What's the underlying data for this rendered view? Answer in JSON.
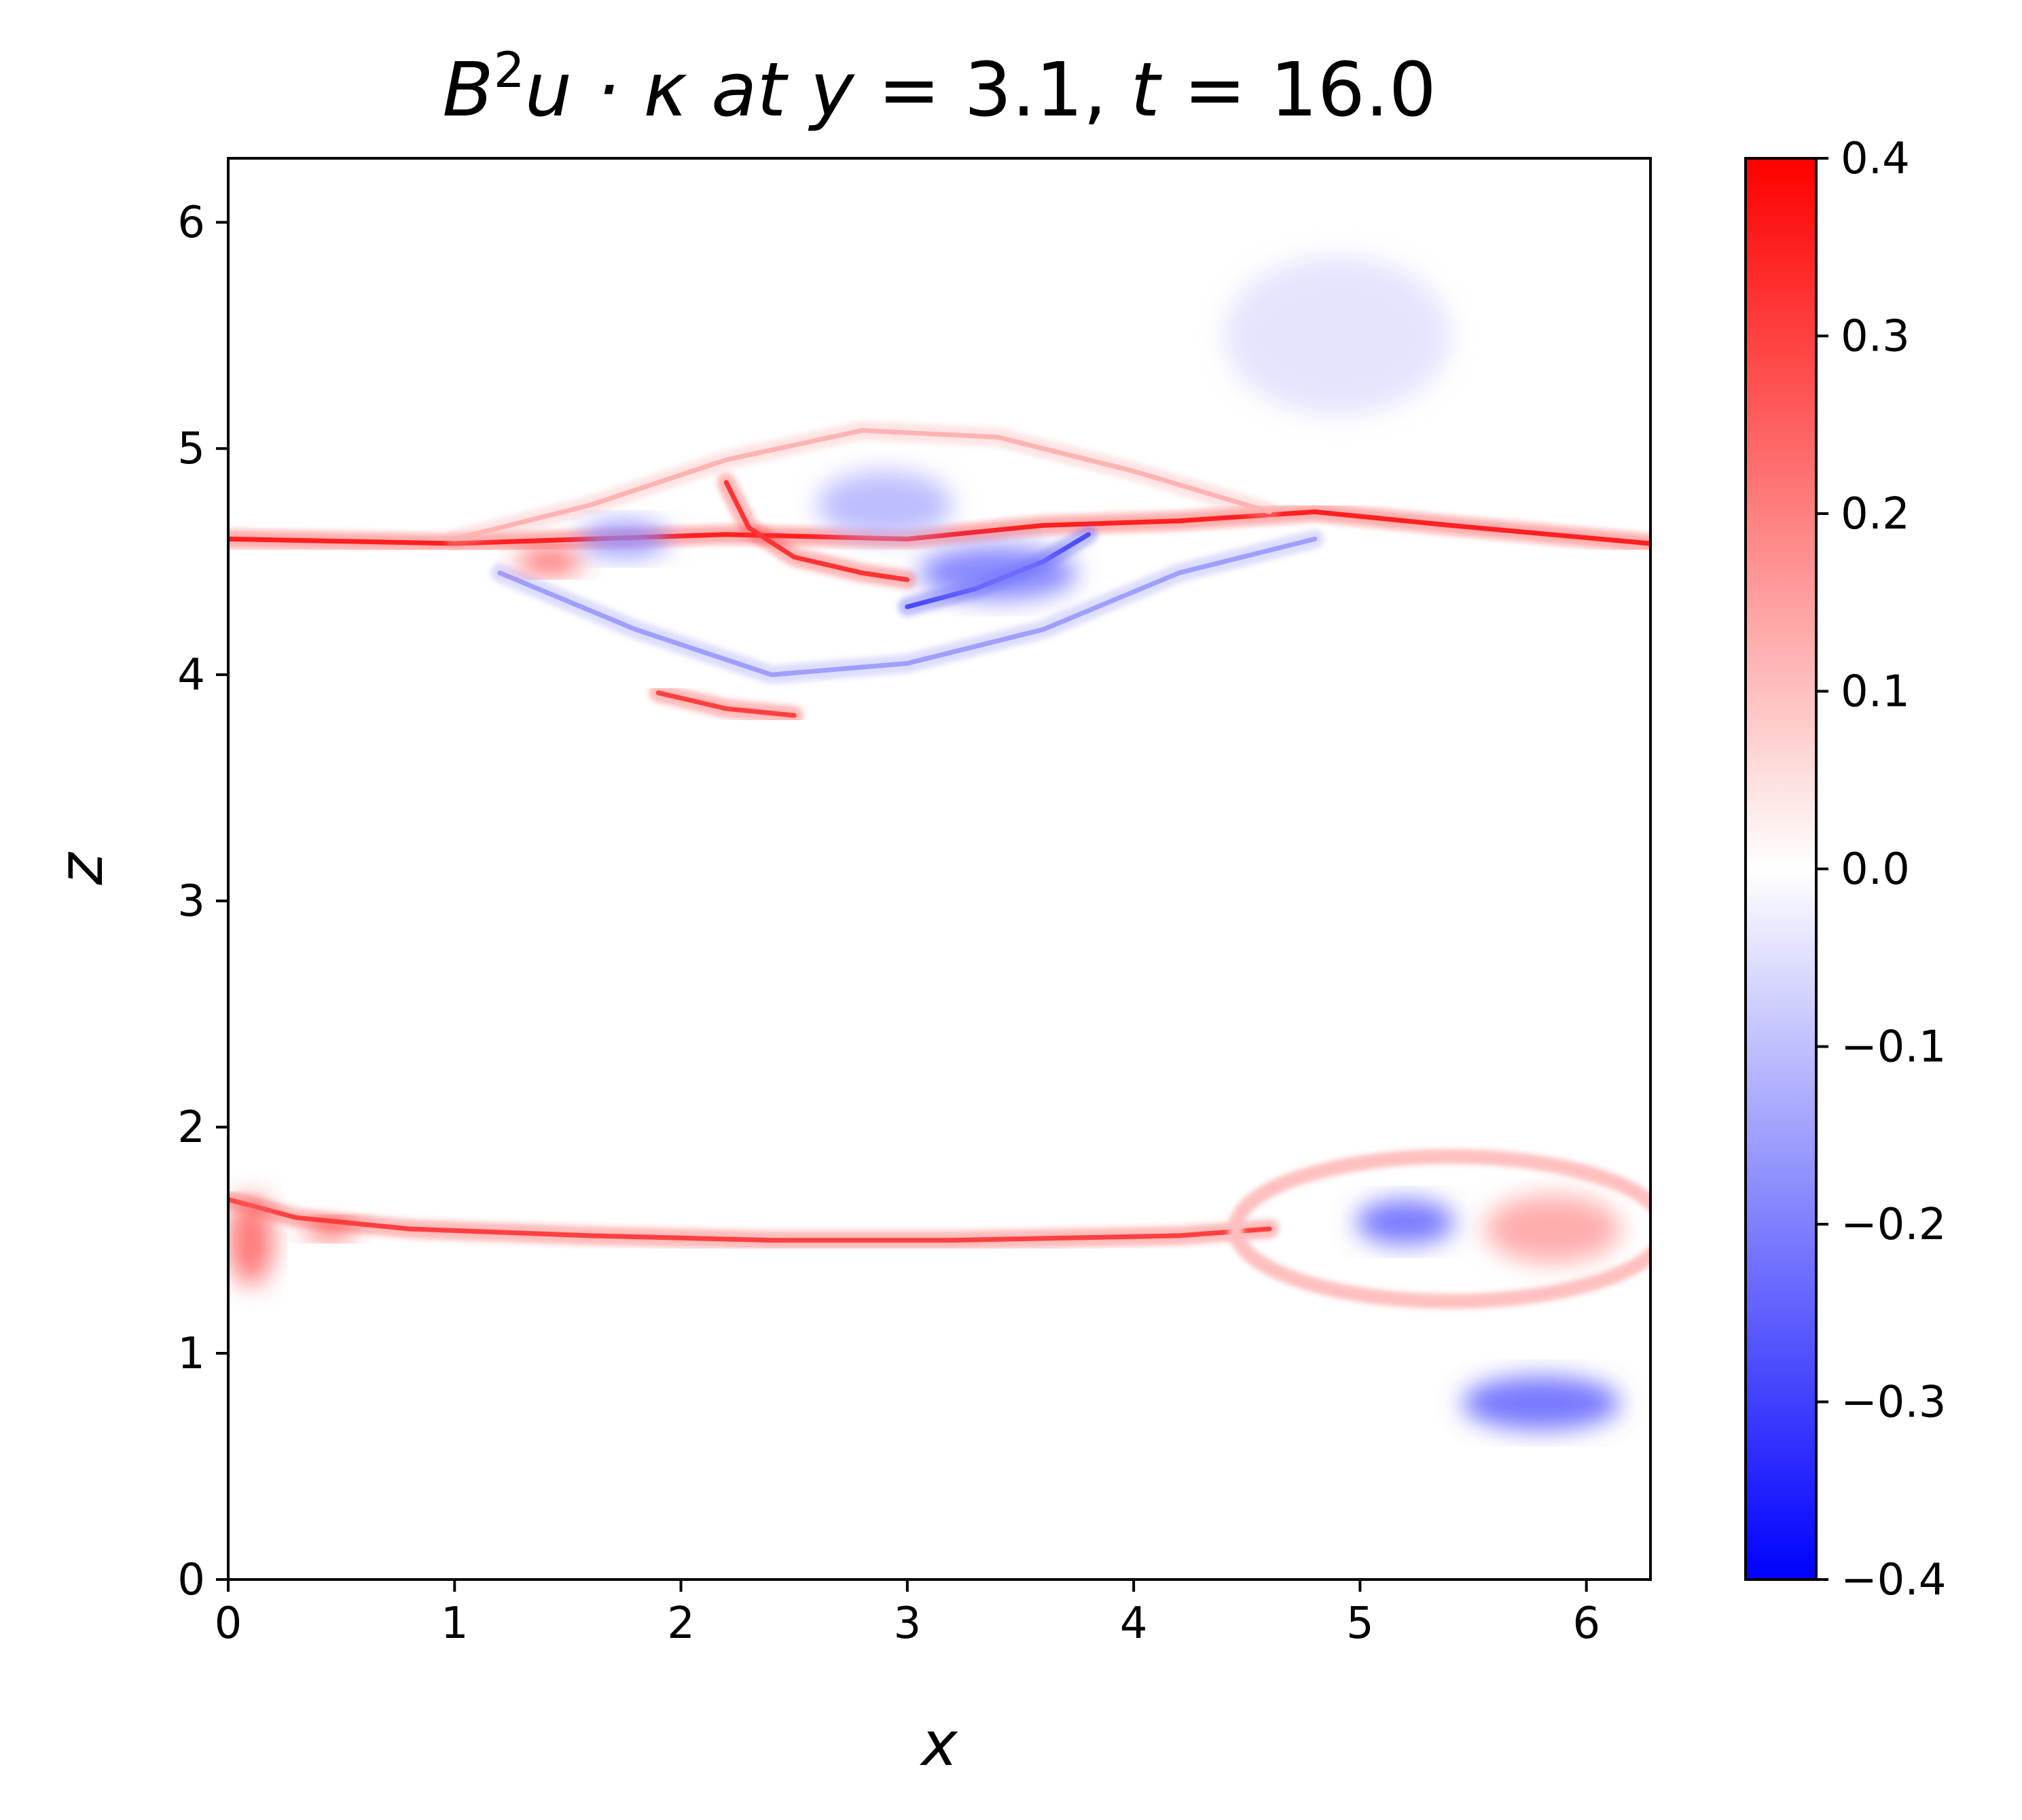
{
  "chart_data": {
    "type": "heatmap",
    "title": {
      "field": "B",
      "field_power": "2",
      "expr": "u · κ at ",
      "var_y": "y",
      "y_value": " = 3.1, ",
      "var_t": "t",
      "t_value": " = 16.0"
    },
    "xlabel": "x",
    "ylabel": "z",
    "xlim": [
      0,
      6.283
    ],
    "ylim": [
      0,
      6.283
    ],
    "xticks": [
      0,
      1,
      2,
      3,
      4,
      5,
      6
    ],
    "yticks": [
      0,
      1,
      2,
      3,
      4,
      5,
      6
    ],
    "xtick_labels": [
      "0",
      "1",
      "2",
      "3",
      "4",
      "5",
      "6"
    ],
    "ytick_labels": [
      "0",
      "1",
      "2",
      "3",
      "4",
      "5",
      "6"
    ],
    "colorbar": {
      "colormap": "bwr",
      "vmin": -0.4,
      "vmax": 0.4,
      "low_color": "#0000ff",
      "mid_color": "#ffffff",
      "high_color": "#ff0000",
      "ticks": [
        0.4,
        0.3,
        0.2,
        0.1,
        0.0,
        -0.1,
        -0.2,
        -0.3,
        -0.4
      ],
      "tick_labels": [
        "0.4",
        "0.3",
        "0.2",
        "0.1",
        "0.0",
        "−0.1",
        "−0.2",
        "−0.3",
        "−0.4"
      ]
    },
    "features": [
      {
        "name": "upper current sheet",
        "kind": "line",
        "value": 0.35,
        "points": [
          [
            0.0,
            4.6
          ],
          [
            1.0,
            4.58
          ],
          [
            1.6,
            4.6
          ],
          [
            2.2,
            4.62
          ],
          [
            3.0,
            4.6
          ],
          [
            3.6,
            4.66
          ],
          [
            4.2,
            4.68
          ],
          [
            4.8,
            4.72
          ],
          [
            5.4,
            4.66
          ],
          [
            6.28,
            4.58
          ]
        ]
      },
      {
        "name": "upper plasmoid outer rim",
        "kind": "line",
        "value": 0.12,
        "points": [
          [
            1.0,
            4.6
          ],
          [
            1.6,
            4.75
          ],
          [
            2.2,
            4.95
          ],
          [
            2.8,
            5.08
          ],
          [
            3.4,
            5.05
          ],
          [
            4.0,
            4.9
          ],
          [
            4.6,
            4.72
          ]
        ]
      },
      {
        "name": "upper plasmoid lower rim",
        "kind": "line",
        "value": -0.15,
        "points": [
          [
            1.2,
            4.45
          ],
          [
            1.8,
            4.2
          ],
          [
            2.4,
            4.0
          ],
          [
            3.0,
            4.05
          ],
          [
            3.6,
            4.2
          ],
          [
            4.2,
            4.45
          ],
          [
            4.8,
            4.6
          ]
        ]
      },
      {
        "name": "upper plasmoid bottom edge",
        "kind": "line",
        "value": 0.3,
        "points": [
          [
            1.9,
            3.92
          ],
          [
            2.2,
            3.85
          ],
          [
            2.5,
            3.82
          ]
        ]
      },
      {
        "name": "upper red arc",
        "kind": "line",
        "value": 0.32,
        "points": [
          [
            2.2,
            4.85
          ],
          [
            2.3,
            4.65
          ],
          [
            2.5,
            4.52
          ],
          [
            2.8,
            4.45
          ],
          [
            3.0,
            4.42
          ]
        ]
      },
      {
        "name": "upper blue arc",
        "kind": "line",
        "value": -0.28,
        "points": [
          [
            3.0,
            4.3
          ],
          [
            3.3,
            4.38
          ],
          [
            3.6,
            4.5
          ],
          [
            3.8,
            4.62
          ]
        ]
      },
      {
        "name": "upper red patch",
        "kind": "blob",
        "value": 0.3,
        "x": 1.42,
        "z": 4.5,
        "rx": 0.15,
        "rz": 0.05
      },
      {
        "name": "upper blue core",
        "kind": "blob",
        "value": -0.22,
        "x": 3.4,
        "z": 4.45,
        "rx": 0.35,
        "rz": 0.12
      },
      {
        "name": "upper blue strip",
        "kind": "blob",
        "value": -0.18,
        "x": 1.75,
        "z": 4.6,
        "rx": 0.2,
        "rz": 0.08
      },
      {
        "name": "upper mixed core",
        "kind": "blob",
        "value": -0.12,
        "x": 2.9,
        "z": 4.75,
        "rx": 0.3,
        "rz": 0.15
      },
      {
        "name": "lower current sheet",
        "kind": "line",
        "value": 0.3,
        "points": [
          [
            0.0,
            1.68
          ],
          [
            0.3,
            1.6
          ],
          [
            0.8,
            1.55
          ],
          [
            1.6,
            1.52
          ],
          [
            2.4,
            1.5
          ],
          [
            3.2,
            1.5
          ],
          [
            4.2,
            1.52
          ],
          [
            4.6,
            1.55
          ]
        ]
      },
      {
        "name": "lower left red patch",
        "kind": "blob",
        "value": 0.32,
        "x": 0.45,
        "z": 1.55,
        "rx": 0.12,
        "rz": 0.04
      },
      {
        "name": "lower left edge structure",
        "kind": "blob",
        "value": 0.25,
        "x": 0.1,
        "z": 1.5,
        "rx": 0.1,
        "rz": 0.2
      },
      {
        "name": "lower plasmoid rim",
        "kind": "ring",
        "value": 0.1,
        "x": 5.4,
        "z": 1.55,
        "rx": 0.95,
        "rz": 0.32
      },
      {
        "name": "lower plasmoid blue core",
        "kind": "blob",
        "value": -0.25,
        "x": 5.2,
        "z": 1.58,
        "rx": 0.22,
        "rz": 0.1
      },
      {
        "name": "lower plasmoid red core",
        "kind": "blob",
        "value": 0.15,
        "x": 5.85,
        "z": 1.55,
        "rx": 0.3,
        "rz": 0.15
      },
      {
        "name": "lower right blue patch",
        "kind": "blob",
        "value": -0.25,
        "x": 5.8,
        "z": 0.78,
        "rx": 0.35,
        "rz": 0.12
      },
      {
        "name": "upper right faint blue",
        "kind": "blob",
        "value": -0.05,
        "x": 4.9,
        "z": 5.5,
        "rx": 0.5,
        "rz": 0.35
      }
    ]
  }
}
